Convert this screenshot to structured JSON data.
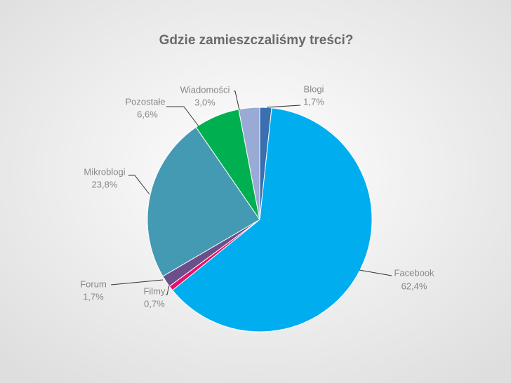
{
  "chart_data": {
    "type": "pie",
    "title": "Gdzie zamieszczaliśmy treści?",
    "categories": [
      "Blogi",
      "Facebook",
      "Filmy",
      "Forum",
      "Mikroblogi",
      "Pozostałe",
      "Wiadomości"
    ],
    "values": [
      1.7,
      62.4,
      0.7,
      1.7,
      23.8,
      6.6,
      3.0
    ],
    "value_labels": [
      "1,7%",
      "62,4%",
      "0,7%",
      "1,7%",
      "23,8%",
      "6,6%",
      "3,0%"
    ],
    "colors": [
      "#3a6fb0",
      "#00adef",
      "#e8106a",
      "#6b4f8a",
      "#4499b3",
      "#00b050",
      "#99aad4"
    ]
  }
}
